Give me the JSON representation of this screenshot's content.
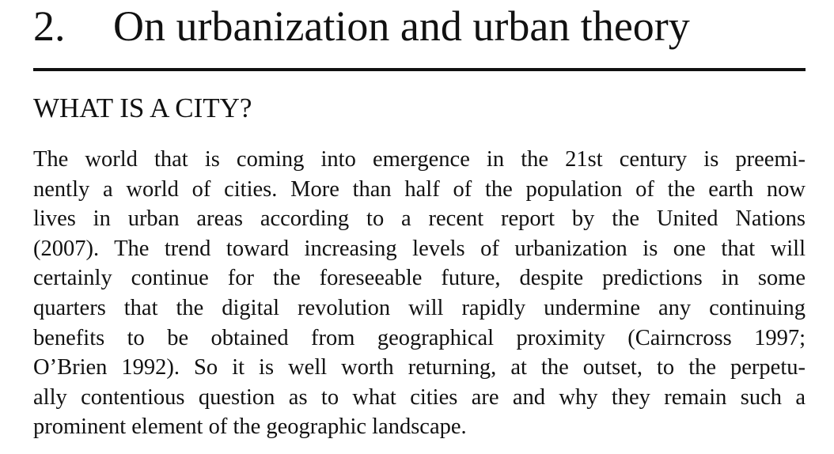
{
  "chapter": {
    "number": "2.",
    "title": "On urbanization and urban theory"
  },
  "section": {
    "heading": "WHAT IS A CITY?"
  },
  "body": {
    "lines": [
      "The world that is coming into emergence in the 21st century is preemi-",
      "nently a world of cities. More than half of the population of the earth now",
      "lives in urban areas according to a recent report by the United Nations",
      "(2007). The trend toward increasing levels of urbanization is one that will",
      "certainly continue for the foreseeable future, despite predictions in some",
      "quarters that the digital revolution will rapidly undermine any continuing",
      "benefits to be obtained from geographical proximity (Cairncross 1997;",
      "O’Brien 1992). So it is well worth returning, at the outset, to the perpetu-",
      "ally contentious question as to what cities are and why they remain such a",
      "prominent element of the geographic landscape."
    ]
  }
}
